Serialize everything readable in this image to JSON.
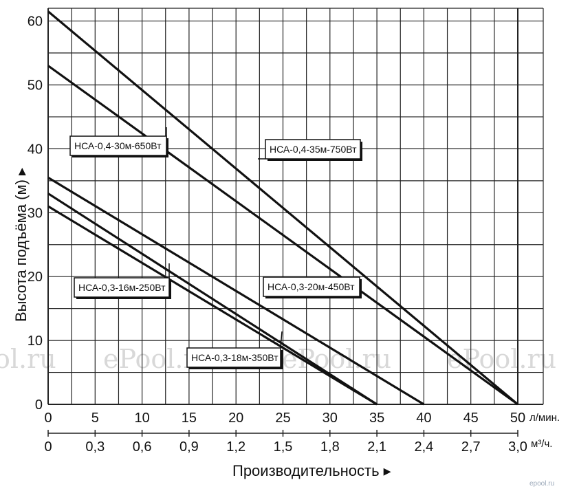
{
  "chart_data": {
    "type": "line",
    "xlabel": "Производительность ▸",
    "ylabel": "Высота подъёма (м) ▸",
    "x_unit_primary": "л/мин.",
    "x_unit_secondary": "м³/ч.",
    "xlim": [
      0,
      50
    ],
    "ylim": [
      0,
      62
    ],
    "grid": true,
    "x_ticks": [
      "0",
      "5",
      "10",
      "15",
      "20",
      "25",
      "30",
      "35",
      "40",
      "45",
      "50"
    ],
    "x_ticks_secondary": [
      "0",
      "0,3",
      "0,6",
      "0,9",
      "1,2",
      "1,5",
      "1,8",
      "2,1",
      "2,4",
      "2,7",
      "3,0"
    ],
    "y_ticks": [
      "0",
      "10",
      "20",
      "30",
      "40",
      "50",
      "60"
    ],
    "series": [
      {
        "name": "НСА-0,4-35м-750Вт",
        "x": [
          0,
          50
        ],
        "y": [
          61.5,
          0
        ]
      },
      {
        "name": "НСА-0,4-30м-650Вт",
        "x": [
          0,
          50
        ],
        "y": [
          53,
          0
        ]
      },
      {
        "name": "НСА-0,3-20м-450Вт",
        "x": [
          0,
          40
        ],
        "y": [
          35.5,
          0
        ]
      },
      {
        "name": "НСА-0,3-18м-350Вт",
        "x": [
          0,
          35
        ],
        "y": [
          33,
          0
        ]
      },
      {
        "name": "НСА-0,3-16м-250Вт",
        "x": [
          0,
          35
        ],
        "y": [
          31,
          0
        ]
      }
    ]
  },
  "watermarks": [
    "ol.ru",
    "ePool.ru",
    "ePool.ru",
    "ePool.ru"
  ],
  "corner_mark": "epool.ru"
}
